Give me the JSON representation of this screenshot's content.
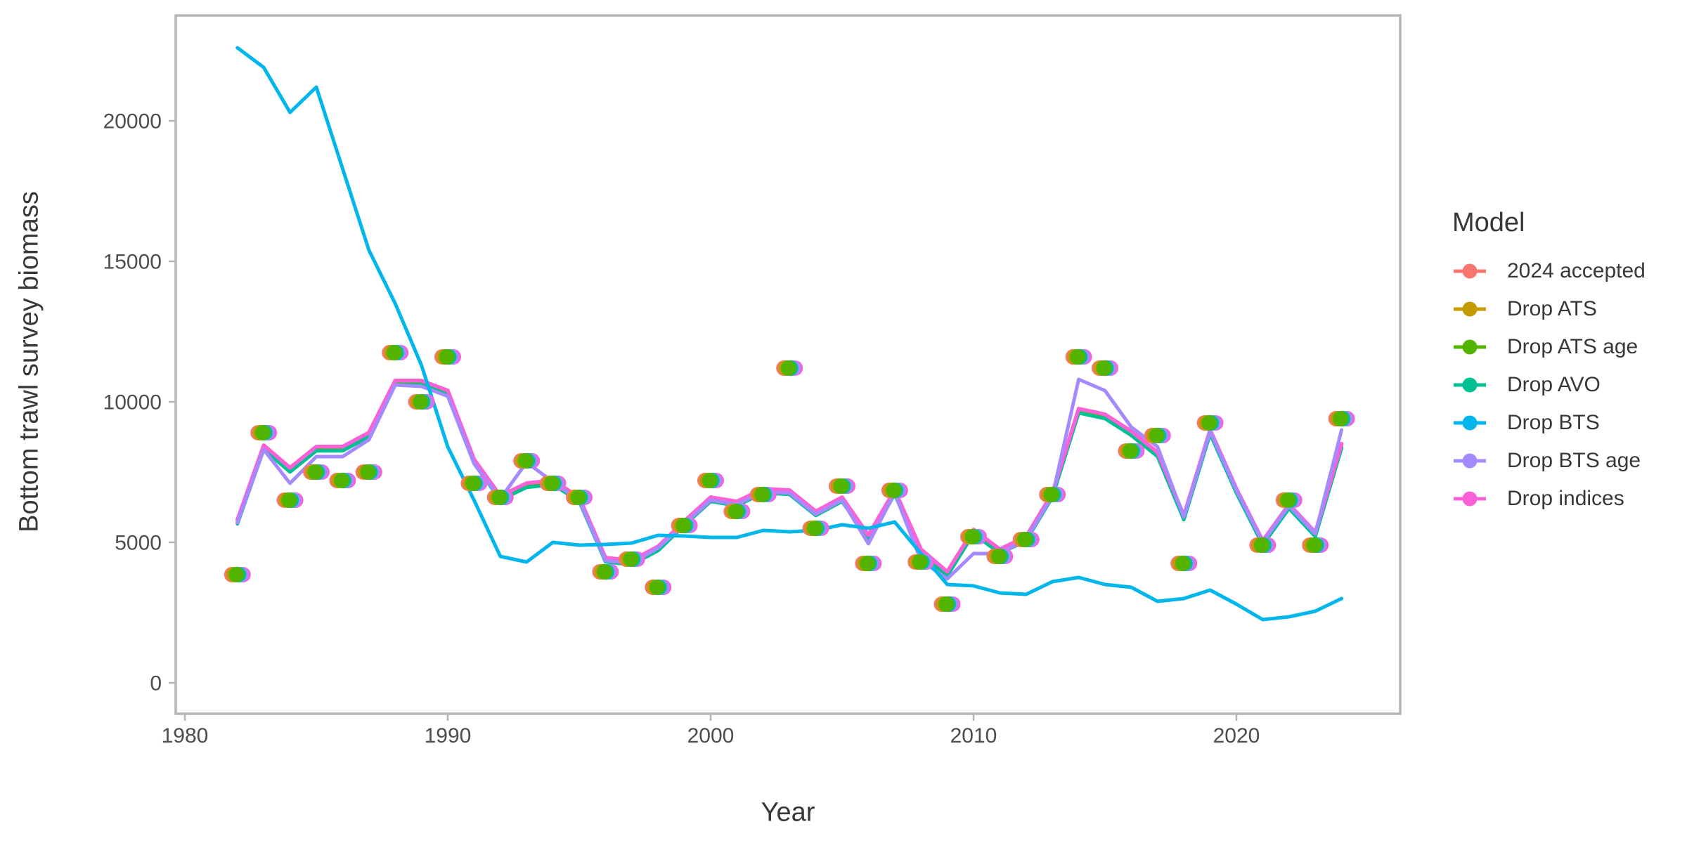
{
  "style": {
    "background": "#ffffff",
    "panel_border_color": "#b5b5b5",
    "tick_mark_color": "#b5b5b5",
    "tick_label_color": "#4d4d4d",
    "axis_title_color": "#383838",
    "legend_text_color": "#383838"
  },
  "chart_data": {
    "type": "line",
    "title": "",
    "xlabel": "Year",
    "ylabel": "Bottom trawl survey biomass",
    "legend_title": "Model",
    "legend_position": "right",
    "grid": "off",
    "panel_background": "white",
    "x_ticks": [
      1980,
      1990,
      2000,
      2010,
      2020
    ],
    "y_ticks": [
      0,
      5000,
      10000,
      15000,
      20000
    ],
    "xlim": [
      1979.6,
      2026.2
    ],
    "ylim": [
      -1100,
      23950
    ],
    "years": [
      1982,
      1983,
      1984,
      1985,
      1986,
      1987,
      1988,
      1989,
      1990,
      1991,
      1992,
      1993,
      1994,
      1995,
      1996,
      1997,
      1998,
      1999,
      2000,
      2001,
      2002,
      2003,
      2004,
      2005,
      2006,
      2007,
      2008,
      2009,
      2010,
      2011,
      2012,
      2013,
      2014,
      2015,
      2016,
      2017,
      2018,
      2019,
      2020,
      2021,
      2022,
      2023,
      2024
    ],
    "series": [
      {
        "name": "2024 accepted",
        "color": "#F8766D",
        "values": [
          5750,
          8400,
          7600,
          8350,
          8350,
          8850,
          10700,
          10700,
          10350,
          7900,
          6600,
          7050,
          7150,
          6550,
          4400,
          4300,
          4800,
          5700,
          6550,
          6400,
          6850,
          6800,
          6050,
          6550,
          5200,
          6800,
          4700,
          3900,
          5400,
          4700,
          5150,
          6700,
          9700,
          9500,
          8900,
          8150,
          5900,
          8950,
          6850,
          5000,
          6300,
          5300,
          8450
        ]
      },
      {
        "name": "Drop ATS",
        "color": "#C49A00",
        "values": [
          5715,
          8365,
          7565,
          8315,
          8315,
          8815,
          10665,
          10665,
          10315,
          7865,
          6565,
          7015,
          7115,
          6515,
          4365,
          4265,
          4765,
          5665,
          6515,
          6365,
          6815,
          6765,
          6015,
          6515,
          5165,
          6765,
          4665,
          3865,
          5365,
          4665,
          5115,
          6665,
          9665,
          9465,
          8865,
          8115,
          5865,
          8915,
          6815,
          4965,
          6265,
          5265,
          8415
        ]
      },
      {
        "name": "Drop ATS age",
        "color": "#53B400",
        "values": [
          5685,
          8335,
          7535,
          8285,
          8285,
          8785,
          10635,
          10635,
          10285,
          7835,
          6535,
          6985,
          7085,
          6485,
          4335,
          4235,
          4735,
          5635,
          6485,
          6335,
          6785,
          6735,
          5985,
          6485,
          5135,
          6735,
          4635,
          3835,
          5335,
          4635,
          5085,
          6635,
          9635,
          9435,
          8835,
          8085,
          5835,
          8885,
          6785,
          4935,
          6235,
          5235,
          8385
        ]
      },
      {
        "name": "Drop AVO",
        "color": "#00C094",
        "values": [
          5655,
          8305,
          7505,
          8255,
          8255,
          8755,
          10605,
          10605,
          10255,
          7805,
          6505,
          6955,
          7055,
          6455,
          4305,
          4205,
          4705,
          5605,
          6455,
          6305,
          6755,
          6705,
          5955,
          6455,
          5105,
          6705,
          4605,
          3805,
          5305,
          4605,
          5055,
          6605,
          9605,
          9405,
          8805,
          8055,
          5805,
          8855,
          6755,
          4905,
          6205,
          5205,
          8355
        ]
      },
      {
        "name": "Drop BTS",
        "color": "#00B6EB",
        "values": [
          22600,
          21900,
          20300,
          21200,
          18300,
          15400,
          13500,
          11300,
          8400,
          6500,
          4500,
          4300,
          5000,
          4900,
          4925,
          4975,
          5250,
          5225,
          5175,
          5175,
          5425,
          5375,
          5425,
          5625,
          5500,
          5725,
          4600,
          3500,
          3450,
          3200,
          3150,
          3600,
          3750,
          3500,
          3400,
          2900,
          3000,
          3300,
          2800,
          2250,
          2350,
          2550,
          3000
        ]
      },
      {
        "name": "Drop BTS age",
        "color": "#A58AFF",
        "values": [
          5700,
          8300,
          7100,
          8050,
          8050,
          8650,
          10600,
          10550,
          10200,
          7800,
          6550,
          7850,
          7150,
          6500,
          4350,
          4250,
          4800,
          5650,
          6500,
          6350,
          6800,
          6750,
          6000,
          6500,
          4950,
          6750,
          4350,
          3700,
          4600,
          4600,
          5100,
          6650,
          10800,
          10400,
          9100,
          8400,
          5900,
          8950,
          6850,
          5000,
          6300,
          5300,
          9000
        ]
      },
      {
        "name": "Drop indices",
        "color": "#FB61D7",
        "values": [
          5805,
          8455,
          7655,
          8405,
          8405,
          8905,
          10755,
          10755,
          10405,
          7955,
          6655,
          7105,
          7205,
          6605,
          4455,
          4355,
          4855,
          5755,
          6605,
          6455,
          6905,
          6855,
          6105,
          6605,
          5255,
          6855,
          4755,
          3955,
          5455,
          4755,
          5205,
          6755,
          9755,
          9555,
          8955,
          8205,
          5955,
          9005,
          6905,
          5055,
          6355,
          5355,
          8505
        ]
      }
    ],
    "survey_points": {
      "years": [
        1982,
        1983,
        1984,
        1985,
        1986,
        1987,
        1988,
        1989,
        1990,
        1991,
        1992,
        1993,
        1994,
        1995,
        1996,
        1997,
        1998,
        1999,
        2000,
        2001,
        2002,
        2003,
        2004,
        2005,
        2006,
        2007,
        2008,
        2009,
        2010,
        2011,
        2012,
        2013,
        2014,
        2015,
        2016,
        2017,
        2018,
        2019,
        2021,
        2022,
        2023,
        2024
      ],
      "values": [
        3850,
        8900,
        6500,
        7500,
        7200,
        7500,
        11750,
        10000,
        11600,
        7100,
        6600,
        7900,
        7100,
        6600,
        3950,
        4400,
        3400,
        5600,
        7200,
        6100,
        6700,
        11200,
        5500,
        7000,
        4250,
        6850,
        4300,
        2800,
        5200,
        4500,
        5100,
        6700,
        11600,
        11200,
        8250,
        8800,
        4250,
        9250,
        4900,
        6500,
        4900,
        9400
      ],
      "models_without_points": [
        "Drop BTS"
      ]
    }
  }
}
